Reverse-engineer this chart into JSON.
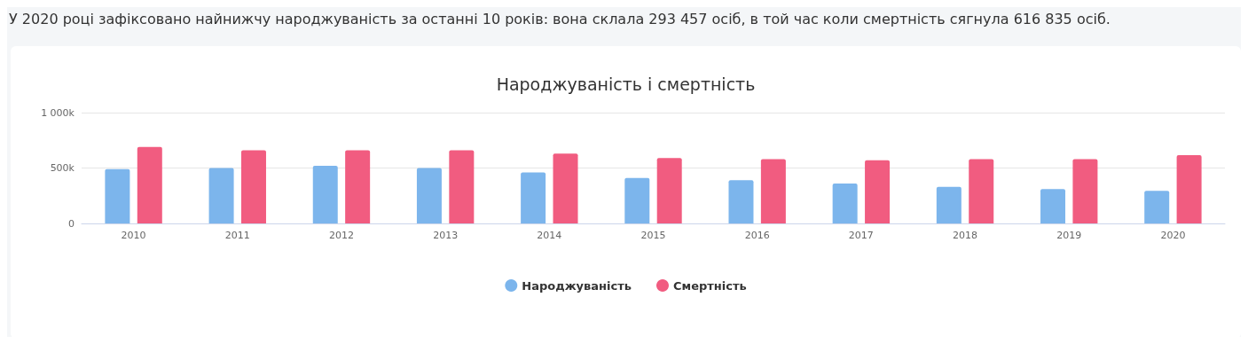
{
  "chart_data": {
    "type": "bar",
    "title": "Народжуваність і смертність",
    "annotations": [
      "У 2020 році зафіксовано найнижчу народжуваність за останні 10 років: вона склала 293 457 осіб, в той час коли смертність сягнула 616 835 осіб."
    ],
    "categories": [
      "2010",
      "2011",
      "2012",
      "2013",
      "2014",
      "2015",
      "2016",
      "2017",
      "2018",
      "2019",
      "2020"
    ],
    "series": [
      {
        "name": "Народжуваність",
        "color": "#7cb5ec",
        "values": [
          490000,
          500000,
          520000,
          500000,
          460000,
          410000,
          390000,
          360000,
          330000,
          310000,
          293457
        ]
      },
      {
        "name": "Смертність",
        "color": "#f15c80",
        "values": [
          690000,
          660000,
          660000,
          660000,
          630000,
          590000,
          580000,
          570000,
          580000,
          580000,
          616835
        ]
      }
    ],
    "ylim": [
      0,
      1000000
    ],
    "yticks": [
      {
        "value": 0,
        "label": "0"
      },
      {
        "value": 500000,
        "label": "500k"
      },
      {
        "value": 1000000,
        "label": "1 000k"
      }
    ],
    "grid": "y",
    "legend": "bottom"
  }
}
